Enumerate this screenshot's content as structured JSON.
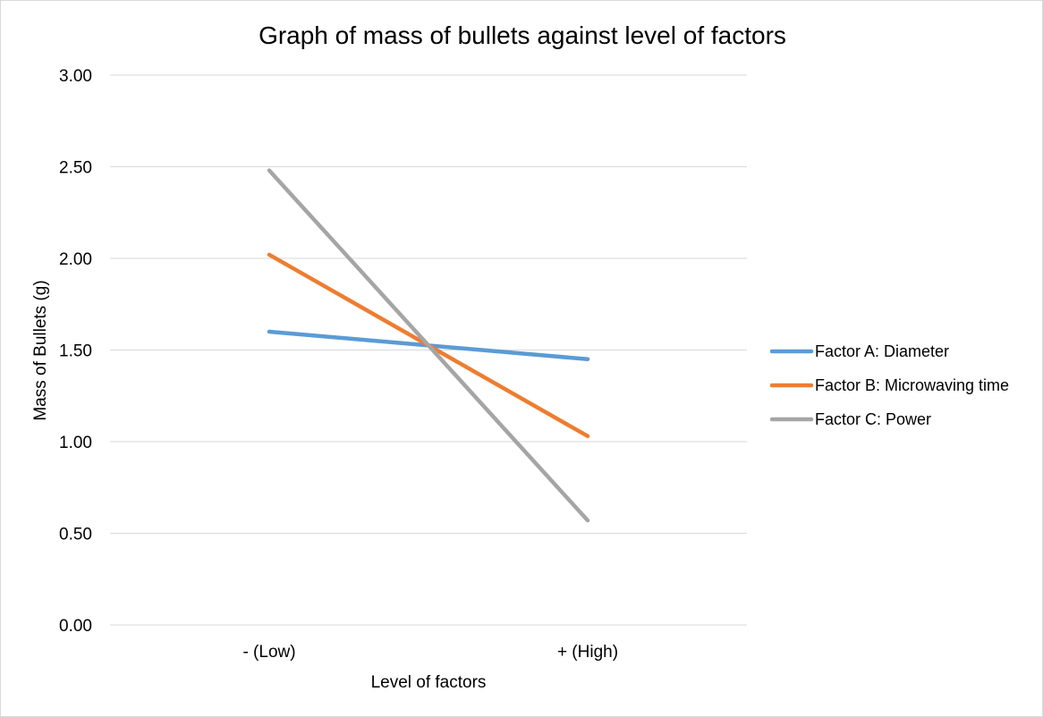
{
  "chart_data": {
    "type": "line",
    "title": "Graph of mass of bullets against level of factors",
    "xlabel": "Level of factors",
    "ylabel": "Mass of Bullets (g)",
    "categories": [
      "- (Low)",
      "+ (High)"
    ],
    "ylim": [
      0,
      3
    ],
    "y_ticks": [
      "0.00",
      "0.50",
      "1.00",
      "1.50",
      "2.00",
      "2.50",
      "3.00"
    ],
    "grid": "horizontal",
    "legend_position": "right",
    "series": [
      {
        "name": "Factor A: Diameter",
        "values": [
          1.6,
          1.45
        ],
        "color": "#5b9bd5"
      },
      {
        "name": "Factor B: Microwaving time",
        "values": [
          2.02,
          1.03
        ],
        "color": "#ed7d31"
      },
      {
        "name": "Factor C: Power",
        "values": [
          2.48,
          0.57
        ],
        "color": "#a5a5a5"
      }
    ]
  }
}
